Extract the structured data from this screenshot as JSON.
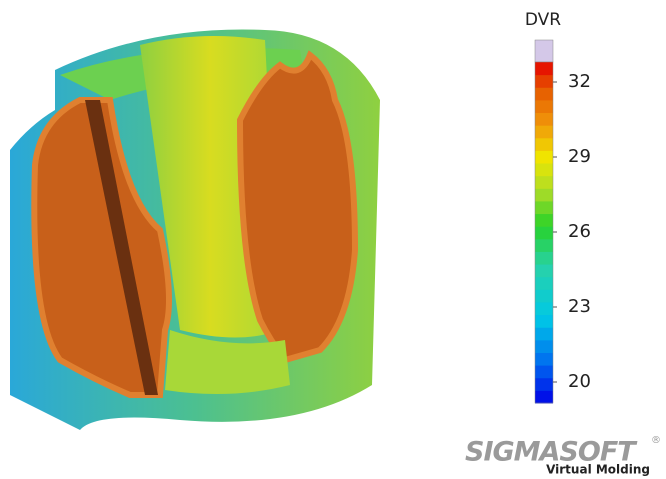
{
  "legend": {
    "title": "DVR",
    "range": [
      19.16,
      32.8
    ],
    "ticks": [
      20,
      23,
      26,
      29,
      32
    ]
  },
  "logo": {
    "brand": "SIGMASOFT",
    "mark": "®",
    "tagline": "Virtual Molding"
  }
}
